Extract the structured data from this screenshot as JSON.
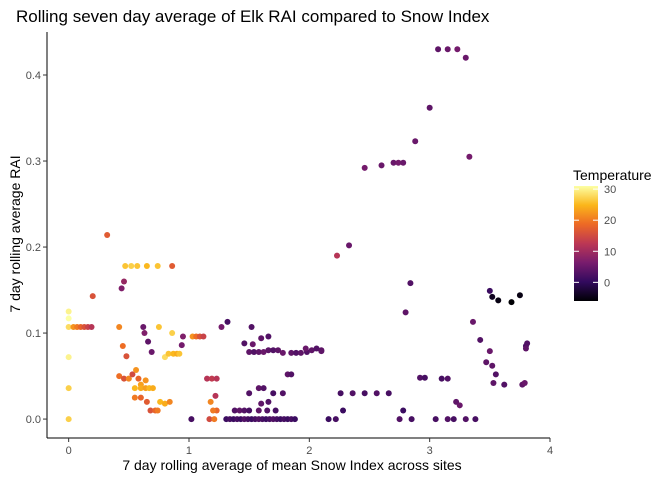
{
  "chart_data": {
    "type": "scatter",
    "title": "Rolling seven day average of Elk RAI compared to Snow Index",
    "xlabel": "7 day rolling average of mean Snow Index across sites",
    "ylabel": "7 day rolling average RAI",
    "xlim": [
      -0.18,
      4.0
    ],
    "ylim": [
      -0.022,
      0.45
    ],
    "x_ticks": [
      0,
      1,
      2,
      3,
      4
    ],
    "x_tick_labels": [
      "0",
      "1",
      "2",
      "3",
      "4"
    ],
    "y_ticks": [
      0.0,
      0.1,
      0.2,
      0.3,
      0.4
    ],
    "y_tick_labels": [
      "0.0",
      "0.1",
      "0.2",
      "0.3",
      "0.4"
    ],
    "grid": false,
    "legend": {
      "title": "Temperature",
      "placement": "right",
      "type": "colorbar",
      "range": [
        -6,
        31
      ],
      "ticks": [
        0,
        10,
        20,
        30
      ],
      "tick_labels": [
        "0",
        "10",
        "20",
        "30"
      ],
      "colormap": "inferno",
      "stops": [
        "#000004",
        "#320a5e",
        "#781c6d",
        "#bc3754",
        "#ed6925",
        "#fbb61a",
        "#fcffa4"
      ]
    },
    "points": [
      [
        0.0,
        0.125,
        30
      ],
      [
        0.0,
        0.117,
        31
      ],
      [
        0.0,
        0.107,
        28
      ],
      [
        0.0,
        0.072,
        30
      ],
      [
        0.0,
        0.036,
        27
      ],
      [
        0.0,
        0.0,
        27
      ],
      [
        0.04,
        0.107,
        22
      ],
      [
        0.07,
        0.107,
        20
      ],
      [
        0.1,
        0.107,
        18
      ],
      [
        0.13,
        0.107,
        16
      ],
      [
        0.16,
        0.107,
        14
      ],
      [
        0.19,
        0.107,
        12
      ],
      [
        0.32,
        0.214,
        17
      ],
      [
        0.2,
        0.143,
        16
      ],
      [
        0.42,
        0.107,
        21
      ],
      [
        0.45,
        0.085,
        19
      ],
      [
        0.48,
        0.073,
        16
      ],
      [
        0.42,
        0.05,
        19
      ],
      [
        0.46,
        0.047,
        16
      ],
      [
        0.5,
        0.047,
        21
      ],
      [
        0.53,
        0.052,
        15
      ],
      [
        0.56,
        0.057,
        22
      ],
      [
        0.58,
        0.047,
        18
      ],
      [
        0.6,
        0.04,
        23
      ],
      [
        0.64,
        0.045,
        22
      ],
      [
        0.55,
        0.036,
        25
      ],
      [
        0.6,
        0.036,
        24
      ],
      [
        0.64,
        0.036,
        23
      ],
      [
        0.67,
        0.036,
        25
      ],
      [
        0.7,
        0.036,
        24
      ],
      [
        0.55,
        0.025,
        20
      ],
      [
        0.6,
        0.025,
        18
      ],
      [
        0.65,
        0.02,
        17
      ],
      [
        0.68,
        0.01,
        16
      ],
      [
        0.72,
        0.01,
        18
      ],
      [
        0.76,
        0.02,
        25
      ],
      [
        0.8,
        0.018,
        24
      ],
      [
        0.84,
        0.02,
        21
      ],
      [
        0.74,
        0.01,
        20
      ],
      [
        0.47,
        0.178,
        26
      ],
      [
        0.52,
        0.178,
        27
      ],
      [
        0.57,
        0.178,
        26
      ],
      [
        0.65,
        0.178,
        25
      ],
      [
        0.74,
        0.178,
        26
      ],
      [
        0.86,
        0.178,
        17
      ],
      [
        0.44,
        0.152,
        7
      ],
      [
        0.46,
        0.16,
        9
      ],
      [
        0.62,
        0.107,
        5
      ],
      [
        0.63,
        0.1,
        7
      ],
      [
        0.66,
        0.09,
        4
      ],
      [
        0.69,
        0.078,
        5
      ],
      [
        0.75,
        0.107,
        26
      ],
      [
        0.8,
        0.072,
        28
      ],
      [
        0.83,
        0.076,
        26
      ],
      [
        0.87,
        0.076,
        25
      ],
      [
        0.9,
        0.076,
        24
      ],
      [
        0.92,
        0.076,
        26
      ],
      [
        0.86,
        0.1,
        27
      ],
      [
        0.95,
        0.096,
        7
      ],
      [
        0.94,
        0.086,
        6
      ],
      [
        1.03,
        0.096,
        22
      ],
      [
        1.06,
        0.096,
        19
      ],
      [
        1.09,
        0.096,
        16
      ],
      [
        1.12,
        0.096,
        14
      ],
      [
        1.02,
        0.0,
        2
      ],
      [
        1.17,
        0.0,
        15
      ],
      [
        1.21,
        0.0,
        20
      ],
      [
        1.23,
        0.01,
        18
      ],
      [
        1.2,
        0.01,
        20
      ],
      [
        1.18,
        0.02,
        21
      ],
      [
        1.15,
        0.047,
        12
      ],
      [
        1.19,
        0.047,
        13
      ],
      [
        1.23,
        0.047,
        12
      ],
      [
        1.27,
        0.107,
        6
      ],
      [
        1.22,
        0.027,
        12
      ],
      [
        1.31,
        0.0,
        1
      ],
      [
        1.34,
        0.0,
        2
      ],
      [
        1.37,
        0.0,
        1
      ],
      [
        1.4,
        0.0,
        2
      ],
      [
        1.43,
        0.0,
        1
      ],
      [
        1.46,
        0.0,
        3
      ],
      [
        1.49,
        0.0,
        2
      ],
      [
        1.52,
        0.0,
        1
      ],
      [
        1.55,
        0.0,
        2
      ],
      [
        1.58,
        0.0,
        3
      ],
      [
        1.61,
        0.0,
        2
      ],
      [
        1.64,
        0.0,
        1
      ],
      [
        1.67,
        0.0,
        2
      ],
      [
        1.7,
        0.0,
        3
      ],
      [
        1.73,
        0.0,
        2
      ],
      [
        1.76,
        0.0,
        1
      ],
      [
        1.79,
        0.0,
        2
      ],
      [
        1.82,
        0.0,
        1
      ],
      [
        1.85,
        0.0,
        2
      ],
      [
        1.88,
        0.0,
        1
      ],
      [
        1.38,
        0.01,
        3
      ],
      [
        1.42,
        0.01,
        4
      ],
      [
        1.46,
        0.01,
        3
      ],
      [
        1.5,
        0.01,
        2
      ],
      [
        1.58,
        0.01,
        4
      ],
      [
        1.65,
        0.01,
        3
      ],
      [
        1.72,
        0.01,
        2
      ],
      [
        1.6,
        0.018,
        4
      ],
      [
        1.66,
        0.02,
        3
      ],
      [
        1.5,
        0.03,
        3
      ],
      [
        1.58,
        0.036,
        4
      ],
      [
        1.62,
        0.036,
        3
      ],
      [
        1.7,
        0.03,
        2
      ],
      [
        1.78,
        0.03,
        3
      ],
      [
        1.32,
        0.113,
        2
      ],
      [
        1.52,
        0.107,
        3
      ],
      [
        1.53,
        0.087,
        5
      ],
      [
        1.46,
        0.088,
        3
      ],
      [
        1.6,
        0.094,
        4
      ],
      [
        1.66,
        0.096,
        3
      ],
      [
        1.5,
        0.078,
        4
      ],
      [
        1.54,
        0.078,
        3
      ],
      [
        1.58,
        0.078,
        4
      ],
      [
        1.62,
        0.078,
        5
      ],
      [
        1.66,
        0.08,
        4
      ],
      [
        1.7,
        0.08,
        3
      ],
      [
        1.74,
        0.08,
        4
      ],
      [
        1.78,
        0.077,
        5
      ],
      [
        1.85,
        0.077,
        4
      ],
      [
        1.89,
        0.077,
        3
      ],
      [
        1.93,
        0.077,
        4
      ],
      [
        1.98,
        0.078,
        3
      ],
      [
        2.02,
        0.08,
        4
      ],
      [
        2.06,
        0.082,
        3
      ],
      [
        2.1,
        0.08,
        4
      ],
      [
        1.82,
        0.052,
        4
      ],
      [
        1.85,
        0.052,
        3
      ],
      [
        1.97,
        0.082,
        5
      ],
      [
        2.1,
        0.079,
        4
      ],
      [
        2.23,
        0.19,
        12
      ],
      [
        2.33,
        0.202,
        5
      ],
      [
        2.16,
        0.0,
        1
      ],
      [
        2.22,
        0.0,
        2
      ],
      [
        2.28,
        0.01,
        1
      ],
      [
        2.26,
        0.03,
        2
      ],
      [
        2.36,
        0.03,
        3
      ],
      [
        2.46,
        0.03,
        2
      ],
      [
        2.56,
        0.03,
        3
      ],
      [
        2.66,
        0.03,
        2
      ],
      [
        2.46,
        0.292,
        6
      ],
      [
        2.6,
        0.295,
        5
      ],
      [
        2.7,
        0.298,
        5
      ],
      [
        2.74,
        0.298,
        6
      ],
      [
        2.78,
        0.298,
        5
      ],
      [
        2.84,
        0.158,
        3
      ],
      [
        2.8,
        0.124,
        4
      ],
      [
        2.88,
        0.323,
        5
      ],
      [
        3.0,
        0.362,
        4
      ],
      [
        3.07,
        0.43,
        4
      ],
      [
        3.15,
        0.43,
        5
      ],
      [
        3.23,
        0.43,
        6
      ],
      [
        3.3,
        0.42,
        5
      ],
      [
        3.33,
        0.305,
        6
      ],
      [
        2.75,
        0.0,
        3
      ],
      [
        2.85,
        0.0,
        2
      ],
      [
        2.78,
        0.01,
        1
      ],
      [
        2.92,
        0.048,
        3
      ],
      [
        2.96,
        0.048,
        2
      ],
      [
        3.1,
        0.047,
        2
      ],
      [
        3.15,
        0.047,
        3
      ],
      [
        3.22,
        0.02,
        4
      ],
      [
        3.25,
        0.016,
        5
      ],
      [
        3.3,
        0.0,
        3
      ],
      [
        3.38,
        0.0,
        2
      ],
      [
        3.05,
        0.0,
        2
      ],
      [
        3.15,
        0.0,
        3
      ],
      [
        3.2,
        0.0,
        2
      ],
      [
        3.36,
        0.113,
        5
      ],
      [
        3.42,
        0.092,
        3
      ],
      [
        3.47,
        0.066,
        4
      ],
      [
        3.52,
        0.062,
        4
      ],
      [
        3.5,
        0.079,
        5
      ],
      [
        3.5,
        0.149,
        1
      ],
      [
        3.52,
        0.142,
        -4
      ],
      [
        3.57,
        0.138,
        -5
      ],
      [
        3.68,
        0.136,
        -6
      ],
      [
        3.75,
        0.144,
        -5
      ],
      [
        3.55,
        0.052,
        3
      ],
      [
        3.53,
        0.042,
        4
      ],
      [
        3.62,
        0.04,
        3
      ],
      [
        3.77,
        0.04,
        4
      ],
      [
        3.79,
        0.042,
        5
      ],
      [
        3.8,
        0.085,
        2
      ],
      [
        3.81,
        0.088,
        3
      ],
      [
        3.8,
        0.082,
        4
      ]
    ]
  }
}
